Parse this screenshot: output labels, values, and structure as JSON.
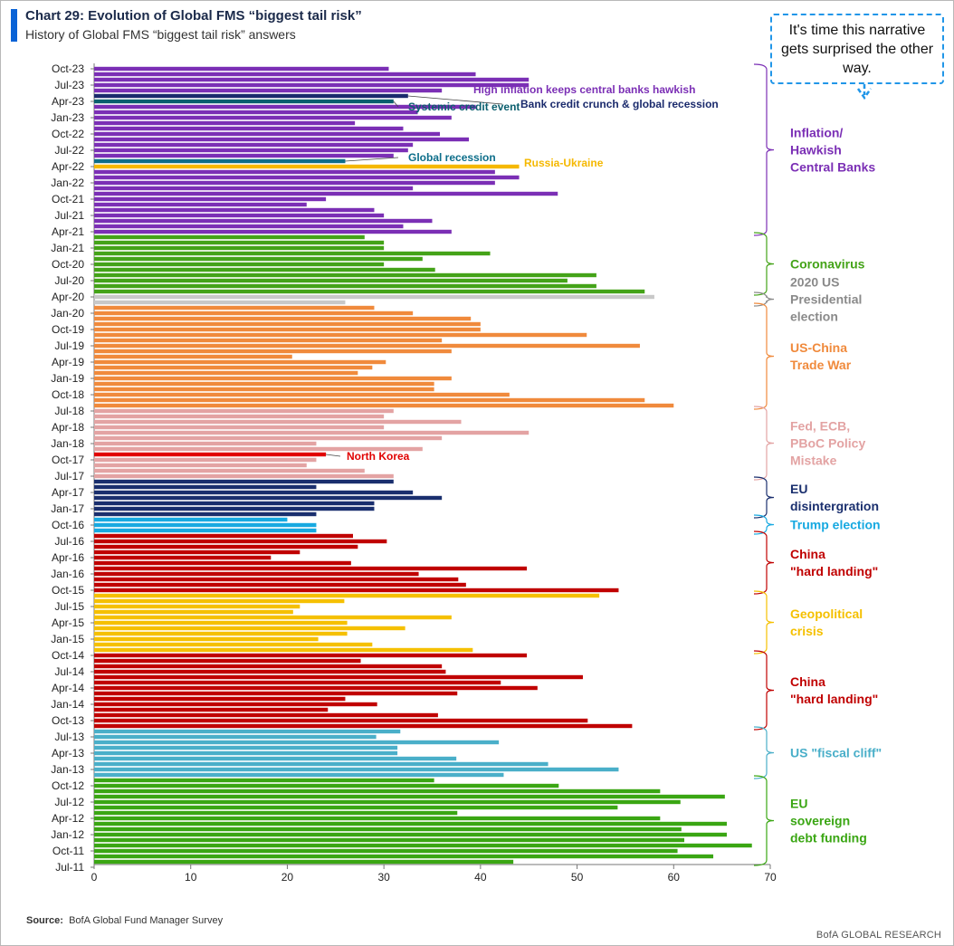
{
  "header": {
    "title": "Chart 29: Evolution of Global FMS “biggest tail risk”",
    "subtitle": "History of Global FMS “biggest tail risk” answers"
  },
  "callout": {
    "text": "It's time this narrative gets surprised the other way."
  },
  "footer": {
    "source_label": "Source:",
    "source_text": "BofA Global Fund Manager Survey",
    "brand": "BofA GLOBAL RESEARCH"
  },
  "colors": {
    "inflation": "#7b2fb5",
    "credit_event": "#0b5f6e",
    "bank_crunch": "#1a2a6c",
    "global_recession": "#0d6e8a",
    "russia": "#f5b800",
    "corona": "#44a318",
    "election": "#c8c8c8",
    "election_text": "#8a8a8a",
    "trade": "#f08a3c",
    "fed": "#e3a3a3",
    "northkorea": "#e10000",
    "eu": "#1a2f6e",
    "trump": "#17a9e1",
    "china": "#c00000",
    "geo": "#f5c000",
    "fiscal": "#4aafc9",
    "sovereign": "#3aa613"
  },
  "chart_data": {
    "type": "bar",
    "orientation": "horizontal",
    "title": "Chart 29: Evolution of Global FMS “biggest tail risk”",
    "xlim": [
      0,
      70
    ],
    "xticks": [
      0,
      10,
      20,
      30,
      40,
      50,
      60,
      70
    ],
    "ytick_labels": [
      "Oct-23",
      "Jul-23",
      "Apr-23",
      "Jan-23",
      "Oct-22",
      "Jul-22",
      "Apr-22",
      "Jan-22",
      "Oct-21",
      "Jul-21",
      "Apr-21",
      "Jan-21",
      "Oct-20",
      "Jul-20",
      "Apr-20",
      "Jan-20",
      "Oct-19",
      "Jul-19",
      "Apr-19",
      "Jan-19",
      "Oct-18",
      "Jul-18",
      "Apr-18",
      "Jan-18",
      "Oct-17",
      "Jul-17",
      "Apr-17",
      "Jan-17",
      "Oct-16",
      "Jul-16",
      "Apr-16",
      "Jan-16",
      "Oct-15",
      "Jul-15",
      "Apr-15",
      "Jan-15",
      "Oct-14",
      "Jul-14",
      "Apr-14",
      "Jan-14",
      "Oct-13",
      "Jul-13",
      "Apr-13",
      "Jan-13",
      "Oct-12",
      "Jul-12",
      "Apr-12",
      "Jan-12",
      "Oct-11",
      "Jul-11"
    ],
    "bars": [
      {
        "v": 30.5,
        "c": "inflation"
      },
      {
        "v": 39.5,
        "c": "inflation"
      },
      {
        "v": 45,
        "c": "inflation"
      },
      {
        "v": 45,
        "c": "inflation"
      },
      {
        "v": 36,
        "c": "inflation"
      },
      {
        "v": 32.5,
        "c": "bank_crunch"
      },
      {
        "v": 31,
        "c": "credit_event"
      },
      {
        "v": 39.5,
        "c": "inflation"
      },
      {
        "v": 33.5,
        "c": "inflation"
      },
      {
        "v": 37,
        "c": "inflation"
      },
      {
        "v": 27,
        "c": "inflation"
      },
      {
        "v": 32,
        "c": "inflation"
      },
      {
        "v": 35.8,
        "c": "inflation"
      },
      {
        "v": 38.8,
        "c": "inflation"
      },
      {
        "v": 33,
        "c": "inflation"
      },
      {
        "v": 32.5,
        "c": "inflation"
      },
      {
        "v": 31,
        "c": "inflation"
      },
      {
        "v": 26,
        "c": "global_recession"
      },
      {
        "v": 44,
        "c": "russia"
      },
      {
        "v": 41.5,
        "c": "inflation"
      },
      {
        "v": 44,
        "c": "inflation"
      },
      {
        "v": 41.5,
        "c": "inflation"
      },
      {
        "v": 33,
        "c": "inflation"
      },
      {
        "v": 48,
        "c": "inflation"
      },
      {
        "v": 24,
        "c": "inflation"
      },
      {
        "v": 22,
        "c": "inflation"
      },
      {
        "v": 29,
        "c": "inflation"
      },
      {
        "v": 30,
        "c": "inflation"
      },
      {
        "v": 35,
        "c": "inflation"
      },
      {
        "v": 32,
        "c": "inflation"
      },
      {
        "v": 37,
        "c": "inflation"
      },
      {
        "v": 28,
        "c": "corona"
      },
      {
        "v": 30,
        "c": "corona"
      },
      {
        "v": 30,
        "c": "corona"
      },
      {
        "v": 41,
        "c": "corona"
      },
      {
        "v": 34,
        "c": "corona"
      },
      {
        "v": 30,
        "c": "corona"
      },
      {
        "v": 35.3,
        "c": "corona"
      },
      {
        "v": 52,
        "c": "corona"
      },
      {
        "v": 49,
        "c": "corona"
      },
      {
        "v": 52,
        "c": "corona"
      },
      {
        "v": 57,
        "c": "corona"
      },
      {
        "v": 58,
        "c": "election"
      },
      {
        "v": 26,
        "c": "election"
      },
      {
        "v": 29,
        "c": "trade"
      },
      {
        "v": 33,
        "c": "trade"
      },
      {
        "v": 39,
        "c": "trade"
      },
      {
        "v": 40,
        "c": "trade"
      },
      {
        "v": 40,
        "c": "trade"
      },
      {
        "v": 51,
        "c": "trade"
      },
      {
        "v": 36,
        "c": "trade"
      },
      {
        "v": 56.5,
        "c": "trade"
      },
      {
        "v": 37,
        "c": "trade"
      },
      {
        "v": 20.5,
        "c": "trade"
      },
      {
        "v": 30.2,
        "c": "trade"
      },
      {
        "v": 28.8,
        "c": "trade"
      },
      {
        "v": 27.3,
        "c": "trade"
      },
      {
        "v": 37,
        "c": "trade"
      },
      {
        "v": 35.2,
        "c": "trade"
      },
      {
        "v": 35.2,
        "c": "trade"
      },
      {
        "v": 43,
        "c": "trade"
      },
      {
        "v": 57,
        "c": "trade"
      },
      {
        "v": 60,
        "c": "trade"
      },
      {
        "v": 31,
        "c": "fed"
      },
      {
        "v": 30,
        "c": "fed"
      },
      {
        "v": 38,
        "c": "fed"
      },
      {
        "v": 30,
        "c": "fed"
      },
      {
        "v": 45,
        "c": "fed"
      },
      {
        "v": 36,
        "c": "fed"
      },
      {
        "v": 23,
        "c": "fed"
      },
      {
        "v": 34,
        "c": "fed"
      },
      {
        "v": 24,
        "c": "northkorea"
      },
      {
        "v": 23,
        "c": "fed"
      },
      {
        "v": 22,
        "c": "fed"
      },
      {
        "v": 28,
        "c": "fed"
      },
      {
        "v": 31,
        "c": "fed"
      },
      {
        "v": 31,
        "c": "eu"
      },
      {
        "v": 23,
        "c": "eu"
      },
      {
        "v": 33,
        "c": "eu"
      },
      {
        "v": 36,
        "c": "eu"
      },
      {
        "v": 29,
        "c": "eu"
      },
      {
        "v": 29,
        "c": "eu"
      },
      {
        "v": 23,
        "c": "eu"
      },
      {
        "v": 20,
        "c": "trump"
      },
      {
        "v": 23,
        "c": "trump"
      },
      {
        "v": 23,
        "c": "trump"
      },
      {
        "v": 26.8,
        "c": "china"
      },
      {
        "v": 30.3,
        "c": "china"
      },
      {
        "v": 27.3,
        "c": "china"
      },
      {
        "v": 21.3,
        "c": "china"
      },
      {
        "v": 18.3,
        "c": "china"
      },
      {
        "v": 26.6,
        "c": "china"
      },
      {
        "v": 44.8,
        "c": "china"
      },
      {
        "v": 33.6,
        "c": "china"
      },
      {
        "v": 37.7,
        "c": "china"
      },
      {
        "v": 38.5,
        "c": "china"
      },
      {
        "v": 54.3,
        "c": "china"
      },
      {
        "v": 52.3,
        "c": "geo"
      },
      {
        "v": 25.9,
        "c": "geo"
      },
      {
        "v": 21.3,
        "c": "geo"
      },
      {
        "v": 20.6,
        "c": "geo"
      },
      {
        "v": 37,
        "c": "geo"
      },
      {
        "v": 26.2,
        "c": "geo"
      },
      {
        "v": 32.2,
        "c": "geo"
      },
      {
        "v": 26.2,
        "c": "geo"
      },
      {
        "v": 23.2,
        "c": "geo"
      },
      {
        "v": 28.8,
        "c": "geo"
      },
      {
        "v": 39.2,
        "c": "geo"
      },
      {
        "v": 44.8,
        "c": "china"
      },
      {
        "v": 27.6,
        "c": "china"
      },
      {
        "v": 36,
        "c": "china"
      },
      {
        "v": 36.4,
        "c": "china"
      },
      {
        "v": 50.6,
        "c": "china"
      },
      {
        "v": 42.1,
        "c": "china"
      },
      {
        "v": 45.9,
        "c": "china"
      },
      {
        "v": 37.6,
        "c": "china"
      },
      {
        "v": 26,
        "c": "china"
      },
      {
        "v": 29.3,
        "c": "china"
      },
      {
        "v": 24.2,
        "c": "china"
      },
      {
        "v": 35.6,
        "c": "china"
      },
      {
        "v": 51.1,
        "c": "china"
      },
      {
        "v": 55.7,
        "c": "china"
      },
      {
        "v": 31.7,
        "c": "fiscal"
      },
      {
        "v": 29.2,
        "c": "fiscal"
      },
      {
        "v": 41.9,
        "c": "fiscal"
      },
      {
        "v": 31.4,
        "c": "fiscal"
      },
      {
        "v": 31.4,
        "c": "fiscal"
      },
      {
        "v": 37.5,
        "c": "fiscal"
      },
      {
        "v": 47,
        "c": "fiscal"
      },
      {
        "v": 54.3,
        "c": "fiscal"
      },
      {
        "v": 42.4,
        "c": "fiscal"
      },
      {
        "v": 35.2,
        "c": "sovereign"
      },
      {
        "v": 48.1,
        "c": "sovereign"
      },
      {
        "v": 58.6,
        "c": "sovereign"
      },
      {
        "v": 65.3,
        "c": "sovereign"
      },
      {
        "v": 60.7,
        "c": "sovereign"
      },
      {
        "v": 54.2,
        "c": "sovereign"
      },
      {
        "v": 37.6,
        "c": "sovereign"
      },
      {
        "v": 58.6,
        "c": "sovereign"
      },
      {
        "v": 65.5,
        "c": "sovereign"
      },
      {
        "v": 60.8,
        "c": "sovereign"
      },
      {
        "v": 65.5,
        "c": "sovereign"
      },
      {
        "v": 61.1,
        "c": "sovereign"
      },
      {
        "v": 68.1,
        "c": "sovereign"
      },
      {
        "v": 60.4,
        "c": "sovereign"
      },
      {
        "v": 64.1,
        "c": "sovereign"
      },
      {
        "v": 43.4,
        "c": "sovereign"
      }
    ],
    "annotations": [
      {
        "text": "High inflation keeps central banks hawkish",
        "bar": 3,
        "c": "inflation"
      },
      {
        "text": "Bank credit crunch & global recession",
        "bar": 5,
        "c": "bank_crunch"
      },
      {
        "text": "Systemic credit event",
        "bar": 6,
        "c": "credit_event"
      },
      {
        "text": "Global recession",
        "bar": 17,
        "c": "global_recession"
      },
      {
        "text": "Russia-Ukraine",
        "bar": 18,
        "c": "russia"
      },
      {
        "text": "North Korea",
        "bar": 71,
        "c": "northkorea"
      }
    ],
    "groups": [
      {
        "label": [
          "Inflation/",
          "Hawkish",
          "Central Banks"
        ],
        "from": 0,
        "to": 30,
        "c": "inflation"
      },
      {
        "label": [
          "Coronavirus"
        ],
        "from": 31,
        "to": 41,
        "c": "corona"
      },
      {
        "label": [
          "2020 US",
          "Presidential",
          "election"
        ],
        "from": 42,
        "to": 43,
        "c": "election_text"
      },
      {
        "label": [
          "US-China",
          "Trade War"
        ],
        "from": 44,
        "to": 62,
        "c": "trade"
      },
      {
        "label": [
          "Fed, ECB,",
          "PBoC Policy",
          "Mistake"
        ],
        "from": 63,
        "to": 75,
        "c": "fed"
      },
      {
        "label": [
          "EU",
          "disintergration"
        ],
        "from": 76,
        "to": 82,
        "c": "eu"
      },
      {
        "label": [
          "Trump election"
        ],
        "from": 83,
        "to": 85,
        "c": "trump"
      },
      {
        "label": [
          "China",
          "\"hard landing\""
        ],
        "from": 86,
        "to": 96,
        "c": "china"
      },
      {
        "label": [
          "Geopolitical",
          "crisis"
        ],
        "from": 97,
        "to": 107,
        "c": "geo"
      },
      {
        "label": [
          "China",
          "\"hard landing\""
        ],
        "from": 108,
        "to": 121,
        "c": "china"
      },
      {
        "label": [
          "US \"fiscal cliff\""
        ],
        "from": 122,
        "to": 130,
        "c": "fiscal"
      },
      {
        "label": [
          "EU",
          "sovereign",
          "debt funding"
        ],
        "from": 131,
        "to": 146,
        "c": "sovereign"
      }
    ]
  }
}
